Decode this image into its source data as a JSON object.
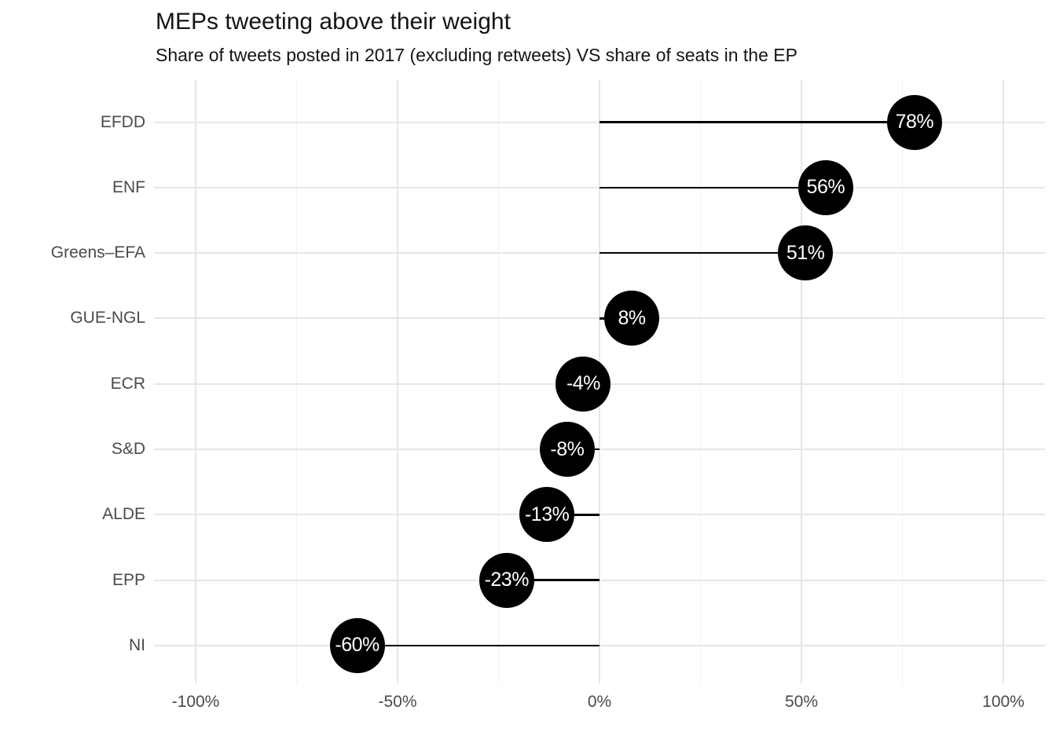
{
  "header": {
    "title": "MEPs tweeting above their weight",
    "subtitle": "Share of tweets posted in 2017 (excluding retweets) VS share of seats in the EP"
  },
  "chart_data": {
    "type": "bar",
    "variant": "lollipop",
    "orientation": "horizontal",
    "title": "MEPs tweeting above their weight",
    "subtitle": "Share of tweets posted in 2017 (excluding retweets) VS share of seats in the EP",
    "categories": [
      "EFDD",
      "ENF",
      "Greens–EFA",
      "GUE-NGL",
      "ECR",
      "S&D",
      "ALDE",
      "EPP",
      "NI"
    ],
    "values": [
      78,
      56,
      51,
      8,
      -4,
      -8,
      -13,
      -23,
      -60
    ],
    "value_labels": [
      "78%",
      "56%",
      "51%",
      "8%",
      "-4%",
      "-8%",
      "-13%",
      "-23%",
      "-60%"
    ],
    "xlim": [
      -110,
      110
    ],
    "x_ticks": [
      {
        "value": -100,
        "label": "-100%"
      },
      {
        "value": -50,
        "label": "-50%"
      },
      {
        "value": 0,
        "label": "0%"
      },
      {
        "value": 50,
        "label": "50%"
      },
      {
        "value": 100,
        "label": "100%"
      }
    ],
    "x_minor_ticks": [
      -75,
      -25,
      25,
      75
    ],
    "baseline": 0,
    "grid": true,
    "legend": false,
    "xlabel": "",
    "ylabel": "",
    "colors": {
      "point_fill": "#000000",
      "point_text": "#ffffff",
      "stem": "#000000",
      "grid_major": "#e6e6e6",
      "grid_minor": "#f0f0f0",
      "axis_text": "#4a4a4a",
      "title_text": "#141414",
      "background": "#ffffff"
    }
  }
}
